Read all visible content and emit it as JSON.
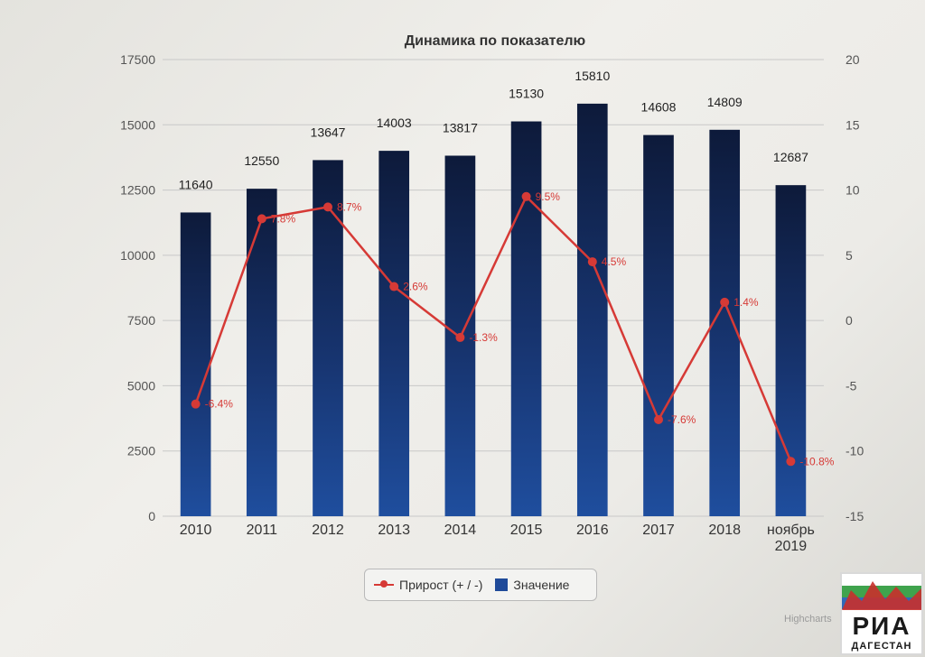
{
  "chart_data": {
    "type": "bar",
    "title": "Динамика по показателю",
    "categories": [
      "2010",
      "2011",
      "2012",
      "2013",
      "2014",
      "2015",
      "2016",
      "2017",
      "2018",
      "ноябрь 2019"
    ],
    "series": [
      {
        "name": "Значение",
        "type": "bar",
        "axis": "left",
        "values": [
          11640,
          12550,
          13647,
          14003,
          13817,
          15130,
          15810,
          14608,
          14809,
          12687
        ],
        "labels": [
          "11640",
          "12550",
          "13647",
          "14003",
          "13817",
          "15130",
          "15810",
          "14608",
          "14809",
          "12687"
        ],
        "color": "#1f4a99"
      },
      {
        "name": "Прирост (+ / -)",
        "type": "line",
        "axis": "right",
        "values": [
          -6.4,
          7.8,
          8.7,
          2.6,
          -1.3,
          9.5,
          4.5,
          -7.6,
          1.4,
          -10.8
        ],
        "labels": [
          "-6.4%",
          "7.8%",
          "8.7%",
          "2.6%",
          "-1.3%",
          "9.5%",
          "4.5%",
          "-7.6%",
          "1.4%",
          "-10.8%"
        ],
        "color": "#d63a36"
      }
    ],
    "y_left": {
      "min": 0,
      "max": 17500,
      "ticks": [
        "0",
        "2500",
        "5000",
        "7500",
        "10000",
        "12500",
        "15000",
        "17500"
      ]
    },
    "y_right": {
      "min": -15,
      "max": 20,
      "ticks": [
        "-15",
        "-10",
        "-5",
        "0",
        "5",
        "10",
        "15",
        "20"
      ]
    },
    "grid": true,
    "legend_position": "bottom-center"
  },
  "legend": {
    "line_label": "Прирост (+ / -)",
    "bar_label": "Значение"
  },
  "credits": "Highcharts",
  "logo": {
    "word": "РИА",
    "sub": "ДАГЕСТАН"
  }
}
